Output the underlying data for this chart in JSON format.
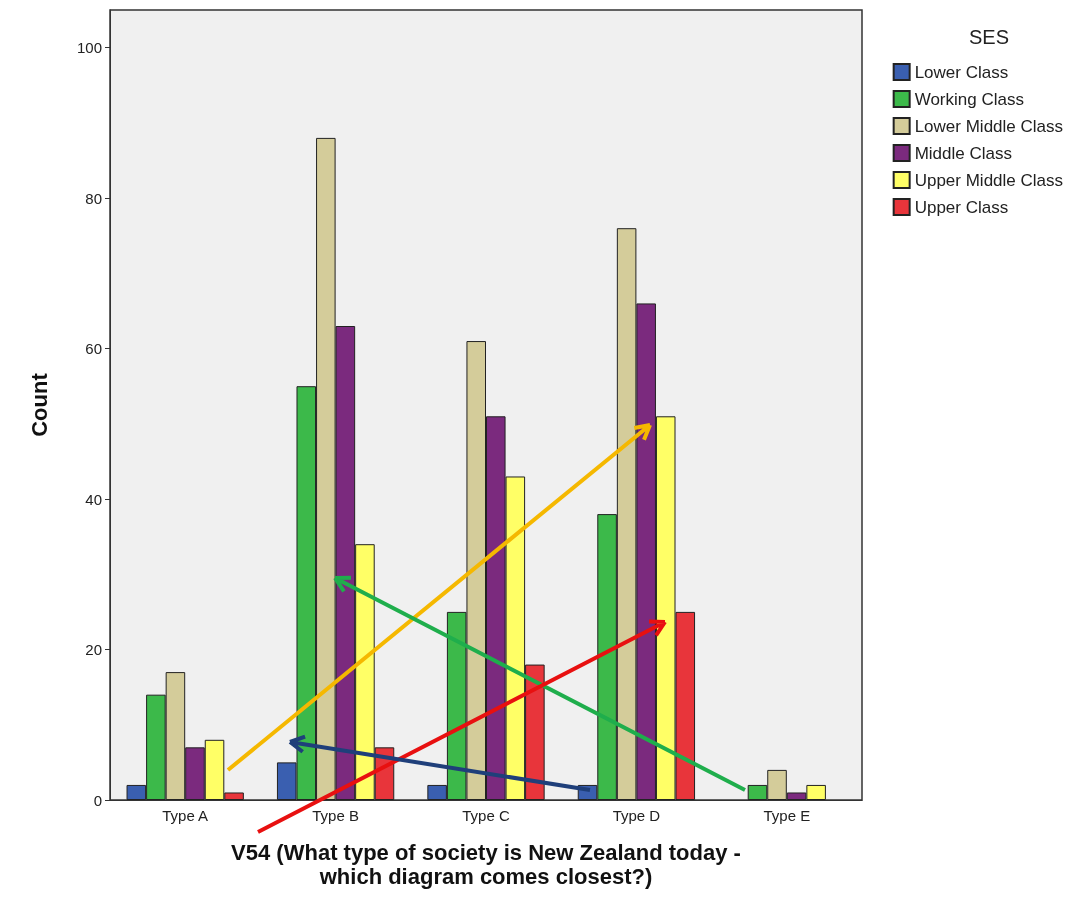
{
  "chart_data": {
    "type": "bar",
    "xlabel": "V54 (What type of society is New Zealand today -\nwhich diagram comes closest?)",
    "ylabel": "Count",
    "legend_title": "SES",
    "legend": "top right",
    "grid": false,
    "categories": [
      "Type A",
      "Type B",
      "Type C",
      "Type D",
      "Type E"
    ],
    "ylim": [
      0,
      105
    ],
    "yticks": [
      0,
      20,
      40,
      60,
      80,
      100
    ],
    "series": [
      {
        "name": "Lower Class",
        "color": "#3a5fb0",
        "values": [
          2,
          5,
          2,
          2,
          0
        ]
      },
      {
        "name": "Working Class",
        "color": "#3cb94a",
        "values": [
          14,
          55,
          25,
          38,
          2
        ]
      },
      {
        "name": "Lower Middle Class",
        "color": "#d4cc9a",
        "values": [
          17,
          88,
          61,
          76,
          4
        ]
      },
      {
        "name": "Middle Class",
        "color": "#7b2a7e",
        "values": [
          7,
          63,
          51,
          66,
          1
        ]
      },
      {
        "name": "Upper Middle Class",
        "color": "#ffff66",
        "values": [
          8,
          34,
          43,
          51,
          2
        ]
      },
      {
        "name": "Upper Class",
        "color": "#e8353b",
        "values": [
          1,
          7,
          18,
          25,
          0
        ]
      }
    ]
  }
}
